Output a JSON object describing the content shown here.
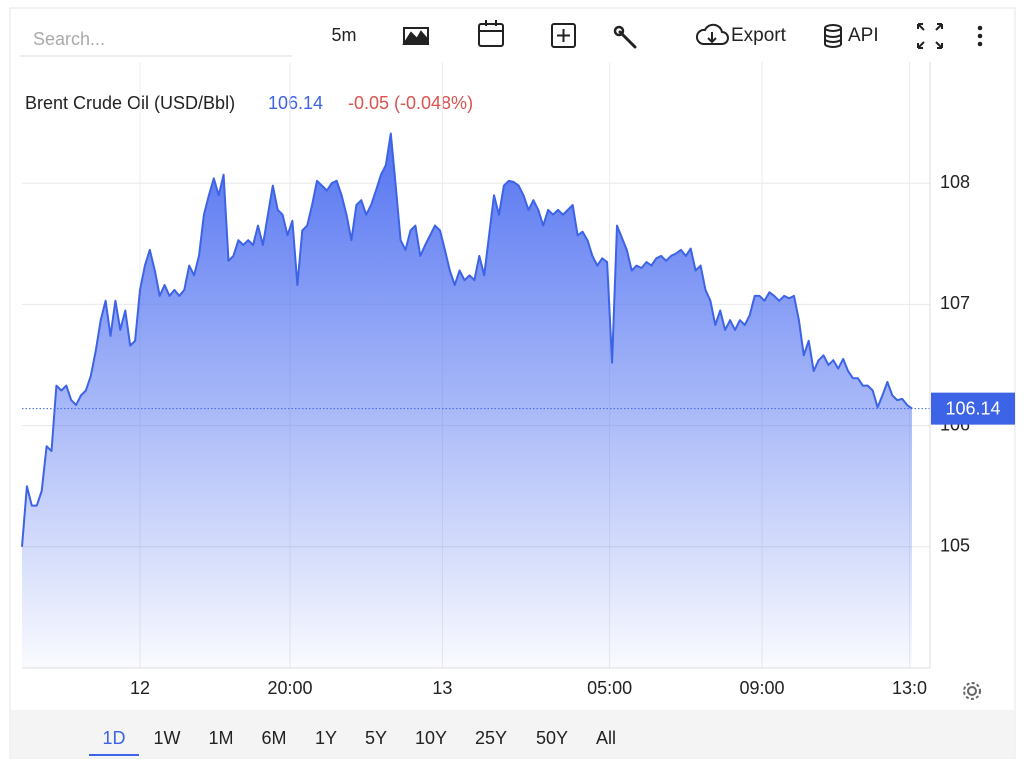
{
  "toolbar": {
    "search_placeholder": "Search...",
    "interval": "5m",
    "export": "Export",
    "api": "API"
  },
  "ranges": [
    "1D",
    "1W",
    "1M",
    "6M",
    "1Y",
    "5Y",
    "10Y",
    "25Y",
    "50Y",
    "All"
  ],
  "active_range": "1D",
  "chart_data": {
    "type": "area",
    "title": "Brent Crude Oil (USD/Bbl)",
    "change_label": "-0.05 (-0.048%)",
    "series": [
      {
        "name": "Brent Crude Oil",
        "color": "#3d63e6",
        "values": [
          105.0,
          105.5,
          105.34,
          105.34,
          105.46,
          105.83,
          105.79,
          106.33,
          106.29,
          106.33,
          106.21,
          106.17,
          106.25,
          106.29,
          106.41,
          106.62,
          106.87,
          107.03,
          106.74,
          107.03,
          106.79,
          106.95,
          106.66,
          106.7,
          107.12,
          107.32,
          107.45,
          107.28,
          107.07,
          107.16,
          107.07,
          107.12,
          107.07,
          107.12,
          107.32,
          107.24,
          107.4,
          107.74,
          107.9,
          108.04,
          107.9,
          108.07,
          107.36,
          107.4,
          107.53,
          107.49,
          107.53,
          107.49,
          107.65,
          107.49,
          107.74,
          107.98,
          107.78,
          107.74,
          107.57,
          107.69,
          107.16,
          107.61,
          107.65,
          107.82,
          108.02,
          107.98,
          107.94,
          108.0,
          108.02,
          107.9,
          107.74,
          107.53,
          107.82,
          107.86,
          107.74,
          107.82,
          107.94,
          108.07,
          108.15,
          108.41,
          107.98,
          107.53,
          107.45,
          107.61,
          107.65,
          107.4,
          107.49,
          107.57,
          107.65,
          107.61,
          107.45,
          107.28,
          107.16,
          107.28,
          107.2,
          107.24,
          107.2,
          107.4,
          107.24,
          107.57,
          107.9,
          107.74,
          107.98,
          108.02,
          108.01,
          107.98,
          107.9,
          107.78,
          107.86,
          107.78,
          107.65,
          107.78,
          107.74,
          107.78,
          107.74,
          107.78,
          107.82,
          107.57,
          107.6,
          107.53,
          107.4,
          107.32,
          107.38,
          107.35,
          106.52,
          107.65,
          107.55,
          107.45,
          107.28,
          107.32,
          107.3,
          107.35,
          107.32,
          107.38,
          107.4,
          107.36,
          107.4,
          107.42,
          107.45,
          107.4,
          107.46,
          107.28,
          107.32,
          107.12,
          107.03,
          106.83,
          106.95,
          106.79,
          106.87,
          106.79,
          106.87,
          106.83,
          106.91,
          107.07,
          107.07,
          107.03,
          107.1,
          107.07,
          107.03,
          107.07,
          107.05,
          107.07,
          106.87,
          106.58,
          106.7,
          106.45,
          106.54,
          106.58,
          106.5,
          106.54,
          106.47,
          106.55,
          106.45,
          106.39,
          106.39,
          106.33,
          106.33,
          106.29,
          106.15,
          106.25,
          106.36,
          106.25,
          106.21,
          106.22,
          106.17,
          106.14
        ]
      }
    ],
    "xticks": [
      {
        "value": 24,
        "label": "12"
      },
      {
        "value": 54.5,
        "label": "20:00"
      },
      {
        "value": 85.5,
        "label": "13"
      },
      {
        "value": 119.5,
        "label": "05:00"
      },
      {
        "value": 150.5,
        "label": "09:00"
      },
      {
        "value": 180.5,
        "label": "13:0"
      }
    ],
    "ylim": [
      104,
      109
    ],
    "yticks": [
      105,
      106,
      107,
      108
    ],
    "grid": true
  }
}
